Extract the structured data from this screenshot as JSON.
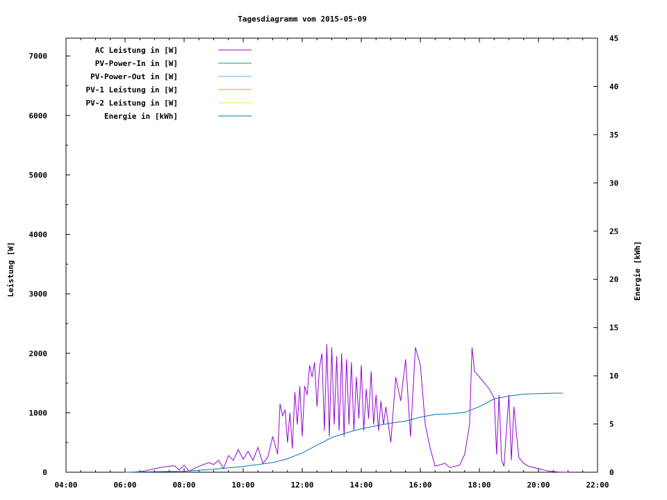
{
  "chart_data": {
    "type": "line",
    "title": "Tagesdiagramm vom 2015-05-09",
    "ylabel": "Leistung [W]",
    "y2label": "Energie [kWh]",
    "xlim": [
      "04:00",
      "22:00"
    ],
    "ylim": [
      0,
      7300
    ],
    "y2lim": [
      0,
      45
    ],
    "x_ticks": [
      "04:00",
      "06:00",
      "08:00",
      "10:00",
      "12:00",
      "14:00",
      "16:00",
      "18:00",
      "20:00",
      "22:00"
    ],
    "y_ticks": [
      0,
      1000,
      2000,
      3000,
      4000,
      5000,
      6000,
      7000
    ],
    "y2_ticks": [
      0,
      5,
      10,
      15,
      20,
      25,
      30,
      35,
      40,
      45
    ],
    "legend_placement": "top-left",
    "grid": false,
    "series": [
      {
        "name": "AC Leistung in [W]",
        "axis": "y",
        "color": "#9400d3",
        "points": [
          [
            "06:15",
            0
          ],
          [
            "06:40",
            20
          ],
          [
            "07:00",
            60
          ],
          [
            "07:20",
            90
          ],
          [
            "07:40",
            110
          ],
          [
            "07:50",
            40
          ],
          [
            "08:00",
            120
          ],
          [
            "08:10",
            20
          ],
          [
            "08:30",
            100
          ],
          [
            "08:50",
            160
          ],
          [
            "09:00",
            130
          ],
          [
            "09:10",
            200
          ],
          [
            "09:20",
            60
          ],
          [
            "09:30",
            280
          ],
          [
            "09:40",
            200
          ],
          [
            "09:50",
            380
          ],
          [
            "10:00",
            220
          ],
          [
            "10:10",
            350
          ],
          [
            "10:20",
            200
          ],
          [
            "10:30",
            420
          ],
          [
            "10:40",
            150
          ],
          [
            "10:50",
            250
          ],
          [
            "11:00",
            600
          ],
          [
            "11:10",
            300
          ],
          [
            "11:15",
            1150
          ],
          [
            "11:20",
            950
          ],
          [
            "11:25",
            1050
          ],
          [
            "11:30",
            500
          ],
          [
            "11:35",
            1000
          ],
          [
            "11:40",
            400
          ],
          [
            "11:45",
            1350
          ],
          [
            "11:50",
            800
          ],
          [
            "11:55",
            1450
          ],
          [
            "12:00",
            600
          ],
          [
            "12:05",
            1450
          ],
          [
            "12:10",
            1300
          ],
          [
            "12:15",
            1800
          ],
          [
            "12:20",
            1600
          ],
          [
            "12:25",
            1850
          ],
          [
            "12:30",
            1100
          ],
          [
            "12:35",
            1750
          ],
          [
            "12:40",
            2000
          ],
          [
            "12:45",
            700
          ],
          [
            "12:50",
            2150
          ],
          [
            "12:55",
            600
          ],
          [
            "13:00",
            2100
          ],
          [
            "13:05",
            800
          ],
          [
            "13:10",
            1950
          ],
          [
            "13:15",
            700
          ],
          [
            "13:20",
            2000
          ],
          [
            "13:25",
            600
          ],
          [
            "13:30",
            1900
          ],
          [
            "13:35",
            800
          ],
          [
            "13:40",
            1850
          ],
          [
            "13:45",
            700
          ],
          [
            "13:50",
            1600
          ],
          [
            "13:55",
            900
          ],
          [
            "14:00",
            1800
          ],
          [
            "14:05",
            700
          ],
          [
            "14:10",
            1400
          ],
          [
            "14:15",
            900
          ],
          [
            "14:20",
            1700
          ],
          [
            "14:25",
            800
          ],
          [
            "14:30",
            1300
          ],
          [
            "14:35",
            700
          ],
          [
            "14:40",
            1200
          ],
          [
            "14:45",
            800
          ],
          [
            "14:50",
            1100
          ],
          [
            "15:00",
            500
          ],
          [
            "15:10",
            1600
          ],
          [
            "15:20",
            1200
          ],
          [
            "15:30",
            1900
          ],
          [
            "15:40",
            600
          ],
          [
            "15:50",
            2100
          ],
          [
            "16:00",
            1800
          ],
          [
            "16:10",
            800
          ],
          [
            "16:20",
            400
          ],
          [
            "16:30",
            100
          ],
          [
            "16:50",
            150
          ],
          [
            "17:00",
            80
          ],
          [
            "17:20",
            120
          ],
          [
            "17:30",
            300
          ],
          [
            "17:40",
            800
          ],
          [
            "17:45",
            2100
          ],
          [
            "17:50",
            1700
          ],
          [
            "18:00",
            1600
          ],
          [
            "18:10",
            1500
          ],
          [
            "18:20",
            1400
          ],
          [
            "18:30",
            1250
          ],
          [
            "18:35",
            300
          ],
          [
            "18:40",
            1300
          ],
          [
            "18:45",
            200
          ],
          [
            "18:50",
            100
          ],
          [
            "19:00",
            1300
          ],
          [
            "19:05",
            200
          ],
          [
            "19:10",
            1100
          ],
          [
            "19:20",
            250
          ],
          [
            "19:30",
            150
          ],
          [
            "19:40",
            100
          ],
          [
            "20:00",
            60
          ],
          [
            "20:20",
            20
          ],
          [
            "20:40",
            5
          ],
          [
            "21:00",
            0
          ]
        ]
      },
      {
        "name": "PV-Power-In in [W]",
        "axis": "y",
        "color": "#009e73",
        "points": []
      },
      {
        "name": "PV-Power-Out in [W]",
        "axis": "y",
        "color": "#56b4e9",
        "points": []
      },
      {
        "name": "PV-1 Leistung in [W]",
        "axis": "y",
        "color": "#e69f00",
        "points": []
      },
      {
        "name": "PV-2 Leistung in [W]",
        "axis": "y",
        "color": "#f0e442",
        "points": []
      },
      {
        "name": "Energie in [kWh]",
        "axis": "y2",
        "color": "#0072b2",
        "points": [
          [
            "06:00",
            0
          ],
          [
            "07:00",
            0.05
          ],
          [
            "08:00",
            0.1
          ],
          [
            "09:00",
            0.3
          ],
          [
            "10:00",
            0.6
          ],
          [
            "11:00",
            1.0
          ],
          [
            "11:30",
            1.4
          ],
          [
            "12:00",
            2.0
          ],
          [
            "12:30",
            2.8
          ],
          [
            "13:00",
            3.6
          ],
          [
            "13:30",
            4.1
          ],
          [
            "14:00",
            4.5
          ],
          [
            "14:30",
            4.8
          ],
          [
            "15:00",
            5.1
          ],
          [
            "15:30",
            5.3
          ],
          [
            "16:00",
            5.7
          ],
          [
            "16:30",
            6.0
          ],
          [
            "17:00",
            6.05
          ],
          [
            "17:30",
            6.2
          ],
          [
            "18:00",
            6.8
          ],
          [
            "18:30",
            7.6
          ],
          [
            "19:00",
            7.9
          ],
          [
            "19:30",
            8.1
          ],
          [
            "20:00",
            8.15
          ],
          [
            "20:30",
            8.2
          ],
          [
            "20:50",
            8.2
          ]
        ]
      }
    ]
  }
}
